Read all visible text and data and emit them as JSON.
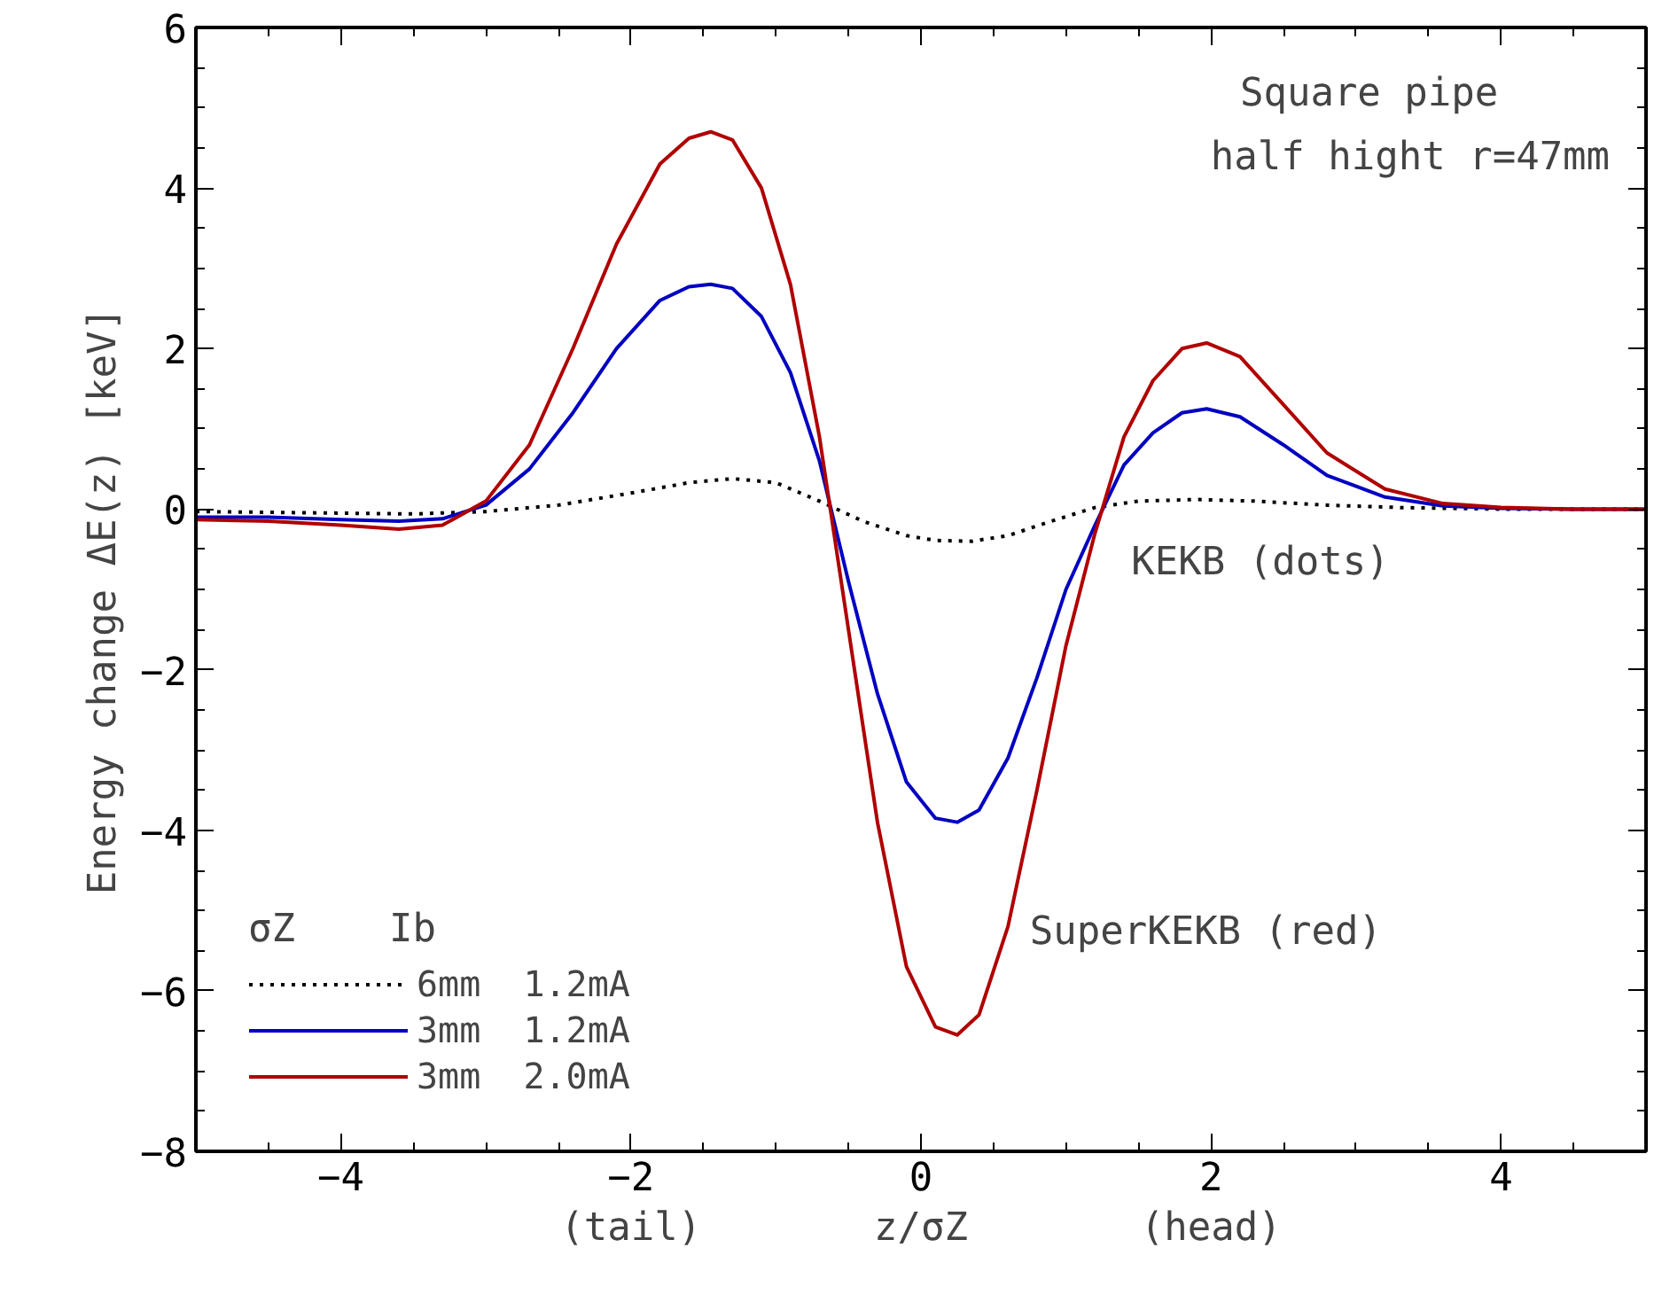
{
  "chart_data": {
    "type": "line",
    "xlabel": "z/σZ",
    "ylabel": "Energy change  ΔE(z) [keV]",
    "legend_title": "σZ    Ib",
    "xlim": [
      -5,
      5
    ],
    "ylim": [
      -8,
      6
    ],
    "xticks": [
      -4,
      -2,
      0,
      2,
      4
    ],
    "yticks": [
      -8,
      -6,
      -4,
      -2,
      0,
      2,
      4,
      6
    ],
    "grid": false,
    "legend": "bottom left",
    "marker": "none",
    "annotations": [
      "Square pipe",
      "half hight r=47mm",
      "KEKB (dots)",
      "SuperKEKB (red)",
      "(tail)",
      "(head)"
    ],
    "series": [
      {
        "name": "6mm  1.2mA",
        "color": "#000000",
        "line_style": "dotted",
        "x": [
          -5,
          -4,
          -3.5,
          -3,
          -2.5,
          -2,
          -1.6,
          -1.3,
          -1.0,
          -0.7,
          -0.4,
          -0.1,
          0.1,
          0.35,
          0.6,
          0.9,
          1.2,
          1.5,
          1.9,
          2.3,
          2.8,
          3.3,
          4,
          5
        ],
        "values": [
          -0.03,
          -0.05,
          -0.06,
          -0.03,
          0.05,
          0.2,
          0.33,
          0.38,
          0.33,
          0.1,
          -0.15,
          -0.33,
          -0.39,
          -0.4,
          -0.33,
          -0.15,
          0.02,
          0.1,
          0.12,
          0.1,
          0.05,
          0.02,
          0,
          0
        ]
      },
      {
        "name": "3mm  1.2mA",
        "color": "#0000c0",
        "line_style": "solid",
        "x": [
          -5,
          -4.5,
          -4,
          -3.6,
          -3.3,
          -3.0,
          -2.7,
          -2.4,
          -2.1,
          -1.8,
          -1.6,
          -1.45,
          -1.3,
          -1.1,
          -0.9,
          -0.7,
          -0.5,
          -0.3,
          -0.1,
          0.1,
          0.25,
          0.4,
          0.6,
          0.8,
          1.0,
          1.2,
          1.4,
          1.6,
          1.8,
          1.97,
          2.2,
          2.5,
          2.8,
          3.2,
          3.6,
          4.0,
          4.5,
          5
        ],
        "values": [
          -0.1,
          -0.1,
          -0.13,
          -0.15,
          -0.12,
          0.05,
          0.5,
          1.2,
          2.0,
          2.6,
          2.77,
          2.8,
          2.75,
          2.4,
          1.7,
          0.6,
          -0.9,
          -2.3,
          -3.4,
          -3.85,
          -3.9,
          -3.75,
          -3.1,
          -2.1,
          -1.0,
          -0.2,
          0.55,
          0.95,
          1.2,
          1.25,
          1.15,
          0.8,
          0.42,
          0.15,
          0.04,
          0.01,
          0,
          0
        ]
      },
      {
        "name": "3mm  2.0mA",
        "color": "#b00000",
        "line_style": "solid",
        "x": [
          -5,
          -4.5,
          -4,
          -3.6,
          -3.3,
          -3.0,
          -2.7,
          -2.4,
          -2.1,
          -1.8,
          -1.6,
          -1.45,
          -1.3,
          -1.1,
          -0.9,
          -0.7,
          -0.5,
          -0.3,
          -0.1,
          0.1,
          0.25,
          0.4,
          0.6,
          0.8,
          1.0,
          1.2,
          1.4,
          1.6,
          1.8,
          1.97,
          2.2,
          2.5,
          2.8,
          3.2,
          3.6,
          4.0,
          4.5,
          5
        ],
        "values": [
          -0.13,
          -0.15,
          -0.2,
          -0.25,
          -0.2,
          0.1,
          0.8,
          2.0,
          3.3,
          4.3,
          4.62,
          4.7,
          4.6,
          4.0,
          2.8,
          0.9,
          -1.5,
          -3.9,
          -5.7,
          -6.45,
          -6.55,
          -6.3,
          -5.2,
          -3.5,
          -1.7,
          -0.3,
          0.9,
          1.6,
          2.0,
          2.07,
          1.9,
          1.3,
          0.7,
          0.25,
          0.07,
          0.02,
          0,
          0
        ]
      }
    ]
  }
}
